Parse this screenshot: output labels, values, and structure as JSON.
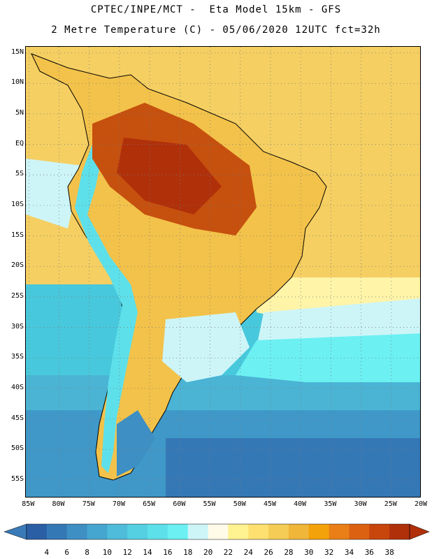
{
  "header": {
    "title_line1": "CPTEC/INPE/MCT -  Eta Model 15km - GFS",
    "title_line2": "2 Metre Temperature (C) - 05/06/2020 12UTC fct=32h"
  },
  "map": {
    "region": "South America",
    "lat_labels": [
      "15N",
      "10N",
      "5N",
      "EQ",
      "5S",
      "10S",
      "15S",
      "20S",
      "25S",
      "30S",
      "35S",
      "40S",
      "45S",
      "50S",
      "55S"
    ],
    "lat_values": [
      15,
      10,
      5,
      0,
      -5,
      -10,
      -15,
      -20,
      -25,
      -30,
      -35,
      -40,
      -45,
      -50,
      -55
    ],
    "lon_labels": [
      "85W",
      "80W",
      "75W",
      "70W",
      "65W",
      "60W",
      "55W",
      "50W",
      "45W",
      "40W",
      "35W",
      "30W",
      "25W",
      "20W"
    ],
    "lon_values": [
      -85,
      -80,
      -75,
      -70,
      -65,
      -60,
      -55,
      -50,
      -45,
      -40,
      -35,
      -30,
      -25,
      -20
    ],
    "extent": {
      "lon_min": -85.5,
      "lon_max": -20,
      "lat_min": -58,
      "lat_max": 16
    },
    "ocean_color": "#48c8dc",
    "land_color": "#f3c24a",
    "hot_color": "#c6500e",
    "cold_color": "#2f60a6"
  },
  "colorbar": {
    "labels": [
      "4",
      "6",
      "8",
      "10",
      "12",
      "14",
      "16",
      "18",
      "20",
      "22",
      "24",
      "26",
      "28",
      "30",
      "32",
      "34",
      "36",
      "38"
    ],
    "colors": [
      "#2b5fa5",
      "#3578b6",
      "#3d8fc4",
      "#45a6d0",
      "#4ebcda",
      "#55cfe2",
      "#5ee0ea",
      "#6cf0f2",
      "#cdf5f8",
      "#fffbe8",
      "#fff290",
      "#fde070",
      "#f5cc55",
      "#efb63a",
      "#f4a20a",
      "#ea7f17",
      "#dc6212",
      "#c8450c",
      "#b0300a"
    ],
    "left_arrow_color": "#3a7ab8",
    "right_arrow_color": "#b0300a"
  }
}
